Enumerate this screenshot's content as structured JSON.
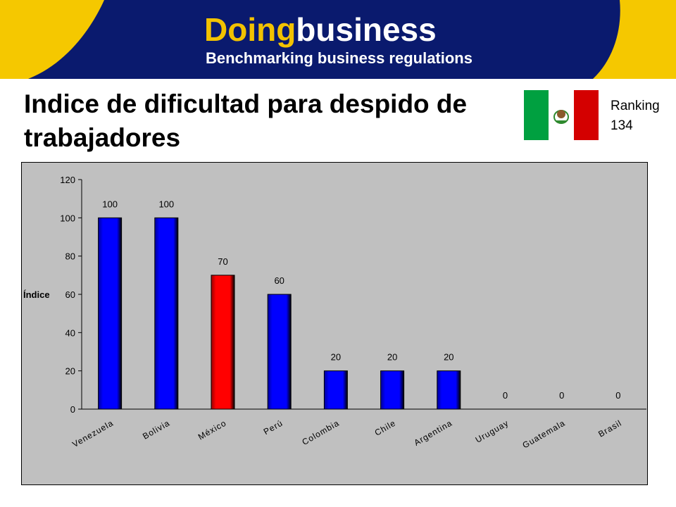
{
  "header": {
    "logo_part1": "Doing",
    "logo_part2": "business",
    "tagline": "Benchmarking business regulations"
  },
  "title": "Indice de dificultad para despido de trabajadores",
  "ranking": {
    "label": "Ranking",
    "value": "134"
  },
  "colors": {
    "banner_navy": "#0a1a6e",
    "banner_yellow": "#f5c800",
    "bar_default": "#0000ff",
    "bar_highlight": "#ff0000",
    "plot_background": "#c0c0c0"
  },
  "chart_data": {
    "type": "bar",
    "categories": [
      "Venezuela",
      "Bolivia",
      "México",
      "Perú",
      "Colombia",
      "Chile",
      "Argentina",
      "Uruguay",
      "Guatemala",
      "Brasil"
    ],
    "values": [
      100,
      100,
      70,
      60,
      20,
      20,
      20,
      0,
      0,
      0
    ],
    "data_labels": [
      "100",
      "100",
      "70",
      "60",
      "20",
      "20",
      "20",
      "0",
      "0",
      "0"
    ],
    "highlight": "México",
    "ylabel": "Índice",
    "xlabel": "",
    "ylim": [
      0,
      120
    ],
    "yticks": [
      0,
      20,
      40,
      60,
      80,
      100,
      120
    ],
    "grid": false,
    "legend": "none"
  }
}
